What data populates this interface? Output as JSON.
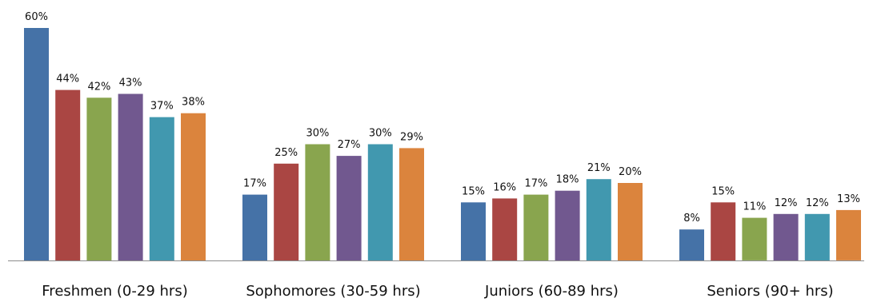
{
  "chart_data": {
    "type": "bar",
    "title": "",
    "xlabel": "",
    "ylabel": "",
    "ylim": [
      0,
      60
    ],
    "grid": false,
    "legend": "none",
    "value_format": "percent",
    "categories": [
      "Freshmen (0-29 hrs)",
      "Sophomores (30-59 hrs)",
      "Juniors (60-89 hrs)",
      "Seniors (90+ hrs)"
    ],
    "series": [
      {
        "color": "#4572A7",
        "values": [
          60,
          17,
          15,
          8
        ]
      },
      {
        "color": "#AA4643",
        "values": [
          44,
          25,
          16,
          15
        ]
      },
      {
        "color": "#89A54E",
        "values": [
          42,
          30,
          17,
          11
        ]
      },
      {
        "color": "#71588F",
        "values": [
          43,
          27,
          18,
          12
        ]
      },
      {
        "color": "#4198AF",
        "values": [
          37,
          30,
          21,
          12
        ]
      },
      {
        "color": "#DB843D",
        "values": [
          38,
          29,
          20,
          13
        ]
      }
    ]
  }
}
